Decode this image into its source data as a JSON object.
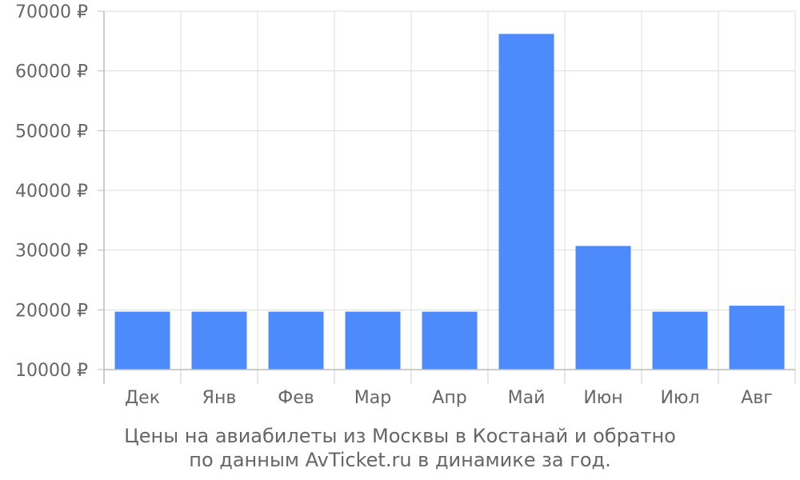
{
  "chart_data": {
    "type": "bar",
    "categories": [
      "Дек",
      "Янв",
      "Фев",
      "Мар",
      "Апр",
      "Май",
      "Июн",
      "Июл",
      "Авг"
    ],
    "series": [
      {
        "values": [
          19700,
          19700,
          19700,
          19700,
          19700,
          66200,
          30700,
          19700,
          20700
        ]
      }
    ],
    "ylim": [
      10000,
      70000
    ],
    "yticks": [
      10000,
      20000,
      30000,
      40000,
      50000,
      60000,
      70000
    ],
    "ytick_suffix": " ₽",
    "grid": true,
    "bar_color": "#4d8afc"
  },
  "caption": {
    "line1": "Цены на авиабилеты из Москвы в Костанай и обратно",
    "line2": "по данным AvTicket.ru в динамике за год."
  }
}
